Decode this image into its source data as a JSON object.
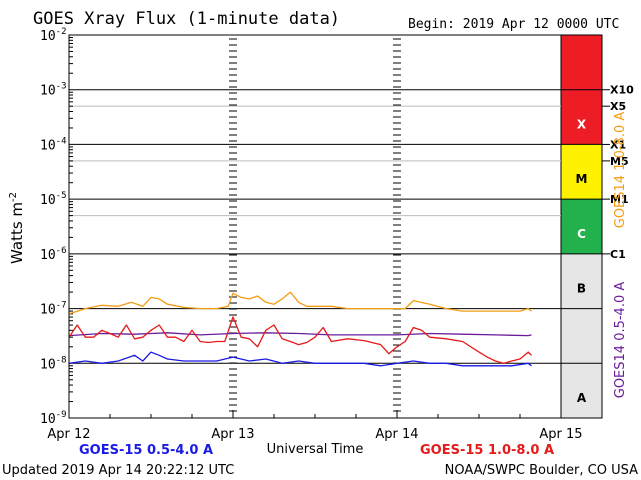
{
  "chart_data": {
    "type": "line",
    "title": "GOES Xray Flux (1-minute data)",
    "begin_label": "Begin:  2019 Apr 12 0000 UTC",
    "ylabel_main": "Watts m",
    "ylabel_exp": "-2",
    "xlabel": "Universal Time",
    "updated": "Updated 2019 Apr 14 20:22:12 UTC",
    "credit": "NOAA/SWPC Boulder, CO USA",
    "y_scale": "log",
    "ylim": [
      1e-09,
      0.01
    ],
    "y_ticks": [
      {
        "value": 0.01,
        "mant": "10",
        "exp": "-2"
      },
      {
        "value": 0.001,
        "mant": "10",
        "exp": "-3"
      },
      {
        "value": 0.0001,
        "mant": "10",
        "exp": "-4"
      },
      {
        "value": 1e-05,
        "mant": "10",
        "exp": "-5"
      },
      {
        "value": 1e-06,
        "mant": "10",
        "exp": "-6"
      },
      {
        "value": 1e-07,
        "mant": "10",
        "exp": "-7"
      },
      {
        "value": 1e-08,
        "mant": "10",
        "exp": "-8"
      },
      {
        "value": 1e-09,
        "mant": "10",
        "exp": "-9"
      }
    ],
    "x_range_days": [
      0,
      3
    ],
    "x_ticks": [
      {
        "day": 0,
        "label": "Apr 12"
      },
      {
        "day": 1,
        "label": "Apr 13"
      },
      {
        "day": 2,
        "label": "Apr 14"
      },
      {
        "day": 3,
        "label": "Apr 15"
      }
    ],
    "flare_classes": [
      {
        "label": "X",
        "from": 0.0001,
        "to": 0.01,
        "color": "#ee1c24"
      },
      {
        "label": "M",
        "from": 1e-05,
        "to": 0.0001,
        "color": "#fff200"
      },
      {
        "label": "C",
        "from": 1e-06,
        "to": 1e-05,
        "color": "#22b14c"
      },
      {
        "label": "B",
        "from": 1e-07,
        "to": 1e-06,
        "color": "#e6e6e6"
      },
      {
        "label": "A",
        "from": 1e-09,
        "to": 1e-07,
        "color": "#e6e6e6"
      }
    ],
    "flare_levels": [
      {
        "label": "X10",
        "value": 0.001
      },
      {
        "label": "X5",
        "value": 0.0005
      },
      {
        "label": "X1",
        "value": 0.0001
      },
      {
        "label": "M5",
        "value": 5e-05
      },
      {
        "label": "M1",
        "value": 1e-05
      },
      {
        "label": "C1",
        "value": 1e-06
      }
    ],
    "right_axis_labels": [
      {
        "text": "GOES14 1.0-8.0 A",
        "color": "#f39c12"
      },
      {
        "text": "GOES14 0.5-4.0 A",
        "color": "#6a1b9a"
      }
    ],
    "legend_bottom": [
      {
        "text": "GOES-15 0.5-4.0 A",
        "color": "#1a1ae6"
      },
      {
        "text": "GOES-15 1.0-8.0 A",
        "color": "#e61a1a"
      }
    ],
    "series": [
      {
        "name": "GOES14 1.0-8.0 A",
        "color": "#f39c12",
        "x": [
          0,
          0.1,
          0.2,
          0.3,
          0.38,
          0.45,
          0.5,
          0.55,
          0.6,
          0.7,
          0.8,
          0.9,
          0.97,
          1.0,
          1.05,
          1.1,
          1.15,
          1.2,
          1.25,
          1.3,
          1.35,
          1.4,
          1.45,
          1.5,
          1.6,
          1.7,
          1.8,
          1.9,
          2.0,
          2.05,
          2.1,
          2.2,
          2.3,
          2.4,
          2.5,
          2.6,
          2.7,
          2.75,
          2.8,
          2.82
        ],
        "y": [
          8e-08,
          1e-07,
          1.15e-07,
          1.1e-07,
          1.3e-07,
          1.1e-07,
          1.6e-07,
          1.5e-07,
          1.2e-07,
          1.05e-07,
          1e-07,
          1e-07,
          1.1e-07,
          1.9e-07,
          1.6e-07,
          1.5e-07,
          1.7e-07,
          1.3e-07,
          1.2e-07,
          1.5e-07,
          2e-07,
          1.3e-07,
          1.1e-07,
          1.1e-07,
          1.1e-07,
          1e-07,
          1e-07,
          1e-07,
          1e-07,
          1e-07,
          1.4e-07,
          1.2e-07,
          1e-07,
          9e-08,
          9e-08,
          9e-08,
          9e-08,
          9e-08,
          1e-07,
          9e-08
        ]
      },
      {
        "name": "GOES14 0.5-4.0 A",
        "color": "#6a1b9a",
        "x": [
          0,
          0.2,
          0.4,
          0.5,
          0.6,
          0.8,
          1.0,
          1.2,
          1.4,
          1.6,
          1.8,
          2.0,
          2.2,
          2.4,
          2.6,
          2.8,
          2.82
        ],
        "y": [
          3.2e-08,
          3.5e-08,
          3.4e-08,
          3.5e-08,
          3.6e-08,
          3.3e-08,
          3.5e-08,
          3.6e-08,
          3.5e-08,
          3.3e-08,
          3.3e-08,
          3.3e-08,
          3.5e-08,
          3.4e-08,
          3.3e-08,
          3.2e-08,
          3.3e-08
        ]
      },
      {
        "name": "GOES-15 1.0-8.0 A",
        "color": "#e61a1a",
        "x": [
          0,
          0.05,
          0.1,
          0.15,
          0.2,
          0.25,
          0.3,
          0.35,
          0.4,
          0.45,
          0.5,
          0.55,
          0.6,
          0.65,
          0.7,
          0.75,
          0.8,
          0.85,
          0.9,
          0.95,
          1.0,
          1.05,
          1.1,
          1.15,
          1.2,
          1.25,
          1.3,
          1.35,
          1.4,
          1.45,
          1.5,
          1.55,
          1.6,
          1.7,
          1.8,
          1.9,
          1.95,
          2.0,
          2.05,
          2.1,
          2.15,
          2.2,
          2.3,
          2.4,
          2.5,
          2.55,
          2.6,
          2.65,
          2.7,
          2.75,
          2.8,
          2.82
        ],
        "y": [
          3e-08,
          5e-08,
          3e-08,
          3e-08,
          4e-08,
          3.5e-08,
          3e-08,
          5e-08,
          2.8e-08,
          3e-08,
          4e-08,
          5e-08,
          3e-08,
          3e-08,
          2.5e-08,
          4e-08,
          2.5e-08,
          2.4e-08,
          2.5e-08,
          2.5e-08,
          7e-08,
          3e-08,
          2.8e-08,
          2e-08,
          4e-08,
          5e-08,
          2.8e-08,
          2.5e-08,
          2.2e-08,
          2.4e-08,
          3e-08,
          4.5e-08,
          2.5e-08,
          2.8e-08,
          2.6e-08,
          2.2e-08,
          1.5e-08,
          2e-08,
          2.5e-08,
          4.5e-08,
          4e-08,
          3e-08,
          2.8e-08,
          2.5e-08,
          1.6e-08,
          1.3e-08,
          1.1e-08,
          1e-08,
          1.1e-08,
          1.2e-08,
          1.6e-08,
          1.4e-08
        ]
      },
      {
        "name": "GOES-15 0.5-4.0 A",
        "color": "#1a1ae6",
        "x": [
          0,
          0.1,
          0.2,
          0.3,
          0.4,
          0.45,
          0.5,
          0.55,
          0.6,
          0.7,
          0.8,
          0.9,
          1.0,
          1.1,
          1.2,
          1.3,
          1.4,
          1.5,
          1.6,
          1.7,
          1.8,
          1.9,
          2.0,
          2.1,
          2.2,
          2.3,
          2.4,
          2.5,
          2.6,
          2.7,
          2.8,
          2.82
        ],
        "y": [
          1e-08,
          1.1e-08,
          1e-08,
          1.1e-08,
          1.4e-08,
          1.1e-08,
          1.6e-08,
          1.4e-08,
          1.2e-08,
          1.1e-08,
          1.1e-08,
          1.1e-08,
          1.3e-08,
          1.1e-08,
          1.2e-08,
          1e-08,
          1.1e-08,
          1e-08,
          1e-08,
          1e-08,
          1e-08,
          9e-09,
          1e-08,
          1.1e-08,
          1e-08,
          1e-08,
          9e-09,
          9e-09,
          9e-09,
          9e-09,
          1e-08,
          9e-09
        ]
      }
    ]
  }
}
